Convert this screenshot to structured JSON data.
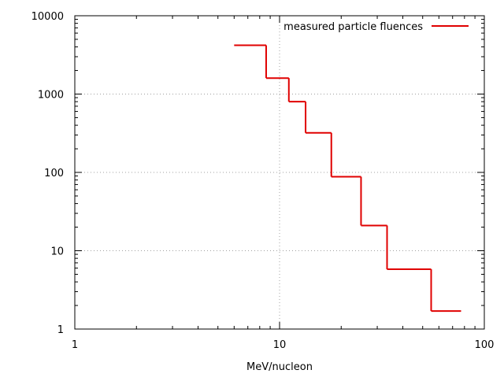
{
  "chart_data": {
    "type": "line",
    "step": true,
    "title": "",
    "xlabel": "MeV/nucleon",
    "ylabel": "",
    "xscale": "log",
    "yscale": "log",
    "xlim": [
      1,
      100
    ],
    "ylim": [
      1,
      10000
    ],
    "grid": true,
    "legend_position": "top-right",
    "x_ticks": [
      {
        "value": 1,
        "label": "1"
      },
      {
        "value": 10,
        "label": "10"
      },
      {
        "value": 100,
        "label": "100"
      }
    ],
    "y_ticks": [
      {
        "value": 1,
        "label": "1"
      },
      {
        "value": 10,
        "label": "10"
      },
      {
        "value": 100,
        "label": "100"
      },
      {
        "value": 1000,
        "label": "1000"
      },
      {
        "value": 10000,
        "label": "10000"
      }
    ],
    "series": [
      {
        "name": "measured particle fluences",
        "color": "#e00000",
        "bins": [
          {
            "x0": 6.0,
            "x1": 8.6,
            "y": 4200
          },
          {
            "x0": 8.6,
            "x1": 11.1,
            "y": 1600
          },
          {
            "x0": 11.1,
            "x1": 13.4,
            "y": 800
          },
          {
            "x0": 13.4,
            "x1": 17.9,
            "y": 320
          },
          {
            "x0": 17.9,
            "x1": 25.0,
            "y": 88
          },
          {
            "x0": 25.0,
            "x1": 33.5,
            "y": 21
          },
          {
            "x0": 33.5,
            "x1": 55.0,
            "y": 5.8
          },
          {
            "x0": 55.0,
            "x1": 77.0,
            "y": 1.7
          }
        ]
      }
    ]
  }
}
